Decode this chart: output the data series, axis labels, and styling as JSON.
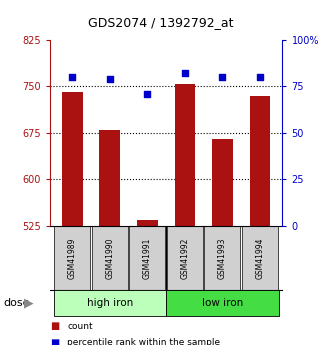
{
  "title": "GDS2074 / 1392792_at",
  "categories": [
    "GSM41989",
    "GSM41990",
    "GSM41991",
    "GSM41992",
    "GSM41993",
    "GSM41994"
  ],
  "bar_values": [
    740,
    680,
    535,
    753,
    665,
    735
  ],
  "percentile_values": [
    80,
    79,
    71,
    82,
    80,
    80
  ],
  "bar_color": "#aa1111",
  "percentile_color": "#0000cc",
  "ymin": 525,
  "ymax": 825,
  "yticks": [
    525,
    600,
    675,
    750,
    825
  ],
  "y2min": 0,
  "y2max": 100,
  "y2ticks": [
    0,
    25,
    50,
    75,
    100
  ],
  "grid_values": [
    750,
    675,
    600
  ],
  "groups": [
    {
      "label": "high iron",
      "color_light": "#ccffcc",
      "color_dark": "#66dd66"
    },
    {
      "label": "low iron",
      "color_light": "#66ee66",
      "color_dark": "#44cc44"
    }
  ],
  "dose_label": "dose",
  "legend": [
    {
      "label": "count",
      "color": "#aa1111"
    },
    {
      "label": "percentile rank within the sample",
      "color": "#0000cc"
    }
  ],
  "bar_width": 0.55,
  "background_color": "#ffffff",
  "label_box_color": "#d0d0d0",
  "high_iron_color": "#bbffbb",
  "low_iron_color": "#44dd44"
}
